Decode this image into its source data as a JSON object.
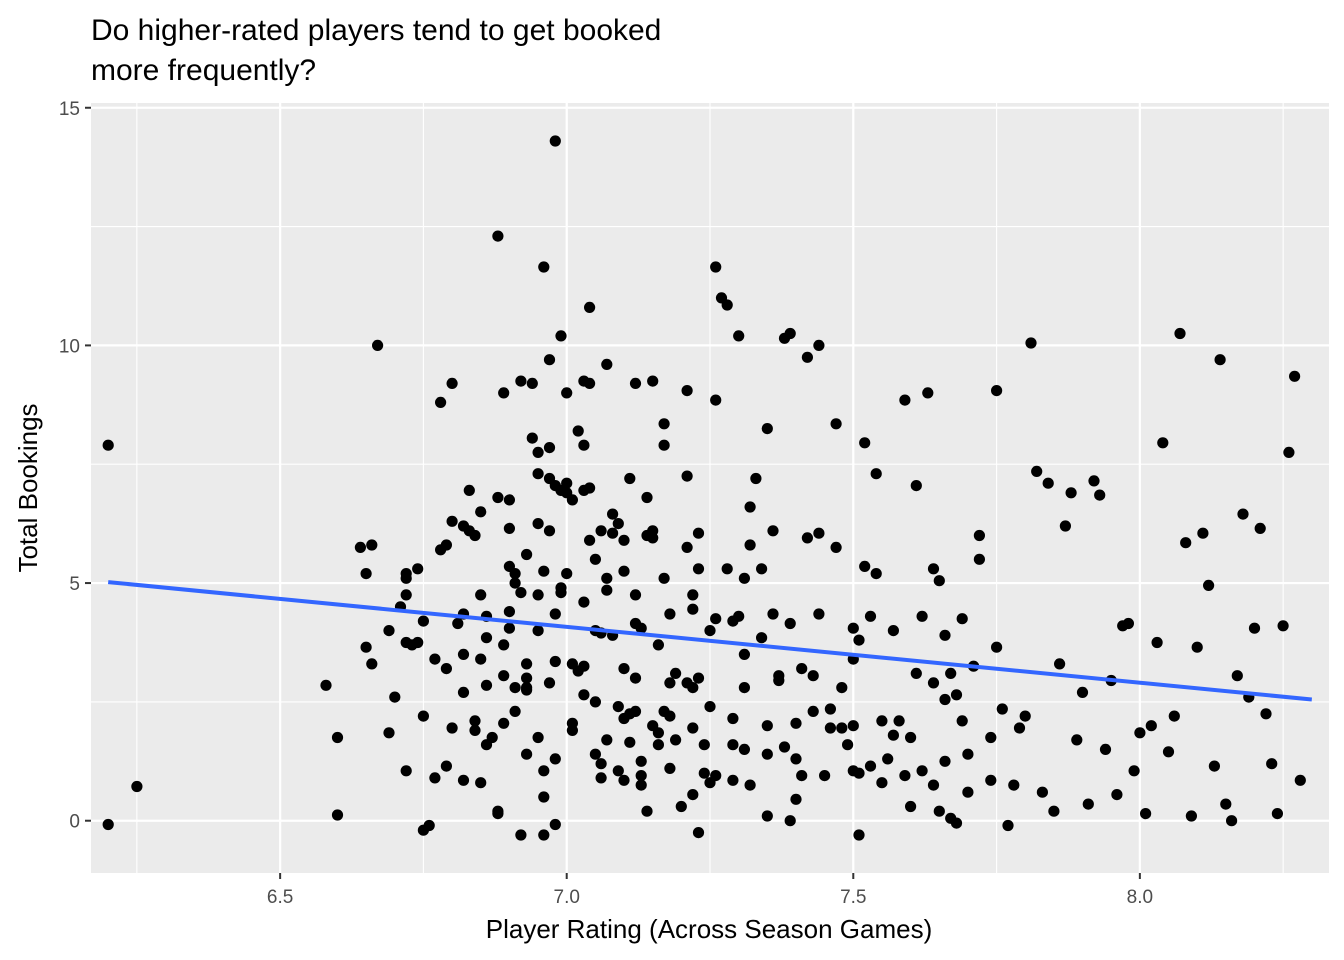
{
  "chart_data": {
    "type": "scatter",
    "title_lines": [
      "Do higher-rated players tend to get booked",
      "more frequently?"
    ],
    "xlabel": "Player Rating (Across Season Games)",
    "ylabel": "Total Bookings",
    "xlim": [
      6.17,
      8.33
    ],
    "ylim": [
      -1.1,
      15.1
    ],
    "x_ticks": [
      6.5,
      7.0,
      7.5,
      8.0
    ],
    "x_tick_labels": [
      "6.5",
      "7.0",
      "7.5",
      "8.0"
    ],
    "y_ticks": [
      0,
      5,
      10,
      15
    ],
    "y_tick_labels": [
      "0",
      "5",
      "10",
      "15"
    ],
    "grid": true,
    "background": "#ebebeb",
    "point_color": "#000000",
    "trend_line": {
      "x": [
        6.2,
        8.3
      ],
      "y": [
        5.02,
        2.55
      ],
      "color": "#3366ff"
    },
    "points": [
      [
        6.2,
        7.9
      ],
      [
        6.2,
        -0.08
      ],
      [
        6.25,
        0.72
      ],
      [
        6.58,
        2.85
      ],
      [
        6.6,
        1.75
      ],
      [
        6.6,
        0.12
      ],
      [
        6.64,
        5.75
      ],
      [
        6.65,
        5.2
      ],
      [
        6.66,
        5.8
      ],
      [
        6.67,
        10.0
      ],
      [
        6.69,
        1.85
      ],
      [
        6.7,
        2.6
      ],
      [
        6.72,
        5.1
      ],
      [
        6.72,
        5.2
      ],
      [
        6.72,
        4.75
      ],
      [
        6.72,
        3.75
      ],
      [
        6.72,
        1.05
      ],
      [
        6.73,
        3.7
      ],
      [
        6.74,
        5.3
      ],
      [
        6.74,
        3.75
      ],
      [
        6.75,
        2.2
      ],
      [
        6.75,
        -0.2
      ],
      [
        6.76,
        -0.1
      ],
      [
        6.77,
        0.9
      ],
      [
        6.78,
        8.8
      ],
      [
        6.78,
        5.7
      ],
      [
        6.79,
        5.8
      ],
      [
        6.79,
        1.15
      ],
      [
        6.8,
        1.95
      ],
      [
        6.81,
        4.15
      ],
      [
        6.82,
        4.35
      ],
      [
        6.82,
        2.7
      ],
      [
        6.82,
        0.85
      ],
      [
        6.8,
        9.2
      ],
      [
        6.82,
        6.2
      ],
      [
        6.83,
        6.1
      ],
      [
        6.83,
        6.95
      ],
      [
        6.84,
        2.1
      ],
      [
        6.84,
        1.9
      ],
      [
        6.85,
        0.8
      ],
      [
        6.85,
        3.4
      ],
      [
        6.85,
        4.75
      ],
      [
        6.86,
        4.3
      ],
      [
        6.86,
        2.85
      ],
      [
        6.86,
        1.6
      ],
      [
        6.87,
        1.75
      ],
      [
        6.88,
        0.2
      ],
      [
        6.88,
        0.15
      ],
      [
        6.89,
        2.05
      ],
      [
        6.89,
        3.05
      ],
      [
        6.89,
        3.7
      ],
      [
        6.9,
        5.35
      ],
      [
        6.9,
        4.4
      ],
      [
        6.91,
        5.2
      ],
      [
        6.91,
        5.0
      ],
      [
        6.91,
        2.8
      ],
      [
        6.91,
        2.3
      ],
      [
        6.92,
        4.8
      ],
      [
        6.92,
        -0.3
      ],
      [
        6.93,
        1.4
      ],
      [
        6.93,
        2.8
      ],
      [
        6.93,
        3.3
      ],
      [
        6.93,
        3.0
      ],
      [
        6.93,
        2.75
      ],
      [
        6.94,
        8.05
      ],
      [
        6.95,
        7.75
      ],
      [
        6.95,
        6.25
      ],
      [
        6.95,
        4.75
      ],
      [
        6.95,
        1.75
      ],
      [
        6.96,
        1.05
      ],
      [
        6.96,
        0.5
      ],
      [
        6.96,
        -0.3
      ],
      [
        6.96,
        11.65
      ],
      [
        6.97,
        7.2
      ],
      [
        6.97,
        6.1
      ],
      [
        6.97,
        2.9
      ],
      [
        6.98,
        1.3
      ],
      [
        6.98,
        -0.08
      ],
      [
        6.98,
        3.35
      ],
      [
        6.99,
        4.8
      ],
      [
        6.99,
        6.95
      ],
      [
        7.0,
        7.1
      ],
      [
        7.0,
        6.9
      ],
      [
        7.0,
        5.2
      ],
      [
        7.01,
        3.3
      ],
      [
        7.01,
        2.05
      ],
      [
        7.01,
        1.9
      ],
      [
        7.02,
        3.15
      ],
      [
        7.03,
        3.25
      ],
      [
        7.03,
        2.65
      ],
      [
        7.03,
        6.95
      ],
      [
        7.04,
        9.2
      ],
      [
        7.04,
        7.0
      ],
      [
        7.04,
        5.9
      ],
      [
        7.05,
        4.0
      ],
      [
        7.05,
        2.5
      ],
      [
        7.05,
        1.4
      ],
      [
        7.06,
        1.2
      ],
      [
        7.06,
        0.9
      ],
      [
        7.06,
        3.95
      ],
      [
        7.06,
        6.1
      ],
      [
        7.07,
        1.7
      ],
      [
        7.07,
        5.1
      ],
      [
        7.08,
        3.9
      ],
      [
        7.08,
        6.05
      ],
      [
        7.09,
        2.4
      ],
      [
        7.09,
        1.05
      ],
      [
        7.1,
        0.85
      ],
      [
        7.1,
        2.15
      ],
      [
        7.1,
        3.2
      ],
      [
        7.1,
        5.25
      ],
      [
        7.11,
        1.65
      ],
      [
        7.11,
        2.25
      ],
      [
        7.11,
        7.2
      ],
      [
        7.12,
        9.2
      ],
      [
        7.12,
        4.15
      ],
      [
        7.12,
        3.0
      ],
      [
        7.12,
        2.3
      ],
      [
        7.13,
        0.95
      ],
      [
        7.13,
        0.75
      ],
      [
        7.13,
        1.25
      ],
      [
        7.13,
        4.05
      ],
      [
        7.14,
        6.8
      ],
      [
        7.14,
        6.0
      ],
      [
        7.14,
        0.2
      ],
      [
        7.15,
        2.0
      ],
      [
        7.15,
        9.25
      ],
      [
        7.15,
        6.1
      ],
      [
        7.16,
        3.7
      ],
      [
        7.16,
        1.6
      ],
      [
        7.16,
        1.85
      ],
      [
        7.17,
        2.3
      ],
      [
        7.17,
        5.1
      ],
      [
        7.17,
        7.9
      ],
      [
        7.17,
        8.35
      ],
      [
        7.18,
        2.9
      ],
      [
        7.18,
        2.2
      ],
      [
        7.18,
        1.1
      ],
      [
        7.19,
        3.1
      ],
      [
        7.19,
        1.7
      ],
      [
        7.2,
        0.3
      ],
      [
        7.21,
        9.05
      ],
      [
        7.21,
        7.25
      ],
      [
        7.21,
        5.75
      ],
      [
        7.21,
        2.9
      ],
      [
        7.22,
        0.55
      ],
      [
        7.22,
        1.95
      ],
      [
        7.22,
        2.8
      ],
      [
        7.22,
        4.75
      ],
      [
        7.23,
        -0.25
      ],
      [
        7.23,
        5.3
      ],
      [
        7.23,
        3.0
      ],
      [
        7.23,
        6.05
      ],
      [
        7.24,
        1.6
      ],
      [
        7.24,
        1.0
      ],
      [
        7.25,
        4.0
      ],
      [
        7.25,
        0.8
      ],
      [
        7.25,
        2.4
      ],
      [
        7.26,
        0.95
      ],
      [
        7.26,
        11.65
      ],
      [
        7.26,
        8.85
      ],
      [
        7.27,
        11.0
      ],
      [
        7.28,
        10.85
      ],
      [
        7.28,
        5.3
      ],
      [
        7.29,
        4.2
      ],
      [
        7.29,
        2.15
      ],
      [
        7.29,
        1.6
      ],
      [
        7.29,
        0.85
      ],
      [
        7.3,
        10.2
      ],
      [
        7.3,
        4.3
      ],
      [
        7.31,
        5.1
      ],
      [
        7.31,
        3.5
      ],
      [
        7.31,
        2.8
      ],
      [
        7.31,
        1.5
      ],
      [
        7.32,
        6.6
      ],
      [
        7.32,
        0.75
      ],
      [
        7.32,
        5.8
      ],
      [
        7.33,
        7.2
      ],
      [
        7.34,
        5.3
      ],
      [
        7.34,
        3.85
      ],
      [
        7.35,
        8.25
      ],
      [
        7.35,
        1.4
      ],
      [
        7.35,
        2.0
      ],
      [
        7.35,
        0.1
      ],
      [
        7.36,
        6.1
      ],
      [
        7.36,
        4.35
      ],
      [
        7.37,
        3.05
      ],
      [
        7.37,
        2.95
      ],
      [
        7.38,
        1.55
      ],
      [
        7.38,
        10.15
      ],
      [
        7.39,
        10.25
      ],
      [
        7.39,
        4.15
      ],
      [
        7.39,
        0.0
      ],
      [
        7.4,
        2.05
      ],
      [
        7.4,
        1.3
      ],
      [
        7.4,
        0.45
      ],
      [
        7.41,
        3.2
      ],
      [
        7.41,
        0.95
      ],
      [
        7.42,
        9.75
      ],
      [
        7.42,
        5.95
      ],
      [
        7.43,
        3.05
      ],
      [
        7.43,
        2.3
      ],
      [
        7.44,
        6.05
      ],
      [
        7.44,
        4.35
      ],
      [
        7.44,
        10.0
      ],
      [
        7.45,
        0.95
      ],
      [
        7.46,
        1.95
      ],
      [
        7.46,
        2.35
      ],
      [
        7.47,
        8.35
      ],
      [
        7.47,
        5.75
      ],
      [
        7.48,
        2.8
      ],
      [
        7.48,
        1.95
      ],
      [
        7.49,
        1.6
      ],
      [
        7.5,
        4.05
      ],
      [
        7.5,
        3.4
      ],
      [
        7.5,
        2.0
      ],
      [
        7.5,
        1.05
      ],
      [
        7.51,
        1.0
      ],
      [
        7.51,
        3.8
      ],
      [
        7.51,
        -0.3
      ],
      [
        7.52,
        7.95
      ],
      [
        7.52,
        5.35
      ],
      [
        7.53,
        4.3
      ],
      [
        7.53,
        1.15
      ],
      [
        7.54,
        5.2
      ],
      [
        7.54,
        7.3
      ],
      [
        7.55,
        2.1
      ],
      [
        7.55,
        0.8
      ],
      [
        7.56,
        1.3
      ],
      [
        7.57,
        1.8
      ],
      [
        7.57,
        4.0
      ],
      [
        7.58,
        2.1
      ],
      [
        7.59,
        8.85
      ],
      [
        7.59,
        0.95
      ],
      [
        7.6,
        0.3
      ],
      [
        7.6,
        1.75
      ],
      [
        7.61,
        3.1
      ],
      [
        7.61,
        7.05
      ],
      [
        7.62,
        4.3
      ],
      [
        7.62,
        1.05
      ],
      [
        7.63,
        9.0
      ],
      [
        7.64,
        5.3
      ],
      [
        7.64,
        2.9
      ],
      [
        7.64,
        0.75
      ],
      [
        7.65,
        5.05
      ],
      [
        7.65,
        0.2
      ],
      [
        7.66,
        3.9
      ],
      [
        7.66,
        2.55
      ],
      [
        7.66,
        1.25
      ],
      [
        7.67,
        0.05
      ],
      [
        7.67,
        3.1
      ],
      [
        7.68,
        -0.05
      ],
      [
        7.68,
        2.65
      ],
      [
        7.69,
        4.25
      ],
      [
        7.69,
        2.1
      ],
      [
        7.7,
        0.6
      ],
      [
        7.7,
        1.4
      ],
      [
        7.71,
        3.25
      ],
      [
        7.72,
        5.5
      ],
      [
        7.72,
        6.0
      ],
      [
        7.74,
        0.85
      ],
      [
        7.74,
        1.75
      ],
      [
        7.75,
        3.65
      ],
      [
        7.75,
        9.05
      ],
      [
        7.76,
        2.35
      ],
      [
        7.77,
        -0.1
      ],
      [
        7.78,
        0.75
      ],
      [
        7.79,
        1.95
      ],
      [
        7.8,
        2.2
      ],
      [
        7.81,
        10.05
      ],
      [
        7.82,
        7.35
      ],
      [
        7.83,
        0.6
      ],
      [
        7.84,
        7.1
      ],
      [
        7.85,
        0.2
      ],
      [
        7.86,
        3.3
      ],
      [
        7.87,
        6.2
      ],
      [
        7.88,
        6.9
      ],
      [
        7.89,
        1.7
      ],
      [
        7.9,
        2.7
      ],
      [
        7.91,
        0.35
      ],
      [
        7.92,
        7.15
      ],
      [
        7.93,
        6.85
      ],
      [
        7.94,
        1.5
      ],
      [
        7.95,
        2.95
      ],
      [
        7.96,
        0.55
      ],
      [
        7.97,
        4.1
      ],
      [
        7.98,
        4.15
      ],
      [
        7.99,
        1.05
      ],
      [
        8.0,
        1.85
      ],
      [
        8.01,
        0.15
      ],
      [
        8.02,
        2.0
      ],
      [
        8.03,
        3.75
      ],
      [
        8.04,
        7.95
      ],
      [
        8.05,
        1.45
      ],
      [
        8.06,
        2.2
      ],
      [
        8.07,
        10.25
      ],
      [
        8.08,
        5.85
      ],
      [
        8.09,
        0.1
      ],
      [
        8.1,
        3.65
      ],
      [
        8.11,
        6.05
      ],
      [
        8.12,
        4.95
      ],
      [
        8.13,
        1.15
      ],
      [
        8.14,
        9.7
      ],
      [
        8.15,
        0.35
      ],
      [
        8.16,
        0.0
      ],
      [
        8.17,
        3.05
      ],
      [
        8.18,
        6.45
      ],
      [
        8.19,
        2.6
      ],
      [
        8.2,
        4.05
      ],
      [
        8.21,
        6.15
      ],
      [
        8.22,
        2.25
      ],
      [
        8.23,
        1.2
      ],
      [
        8.24,
        0.15
      ],
      [
        8.25,
        4.1
      ],
      [
        8.26,
        7.75
      ],
      [
        8.27,
        9.35
      ],
      [
        8.28,
        0.85
      ],
      [
        6.98,
        14.3
      ],
      [
        6.88,
        12.3
      ],
      [
        6.97,
        9.7
      ],
      [
        7.0,
        9.0
      ],
      [
        6.99,
        10.2
      ],
      [
        7.04,
        10.8
      ],
      [
        7.07,
        9.6
      ],
      [
        6.94,
        9.2
      ],
      [
        6.92,
        9.25
      ],
      [
        7.03,
        9.25
      ],
      [
        6.89,
        9.0
      ],
      [
        7.02,
        8.2
      ],
      [
        6.95,
        7.3
      ],
      [
        7.03,
        7.9
      ],
      [
        6.97,
        7.85
      ],
      [
        6.98,
        7.05
      ],
      [
        6.9,
        6.75
      ],
      [
        6.88,
        6.8
      ],
      [
        6.85,
        6.5
      ],
      [
        6.8,
        6.3
      ],
      [
        6.84,
        6.0
      ],
      [
        6.9,
        6.15
      ],
      [
        7.01,
        6.75
      ],
      [
        7.08,
        6.45
      ],
      [
        7.09,
        6.25
      ],
      [
        7.1,
        5.9
      ],
      [
        7.15,
        5.95
      ],
      [
        7.05,
        5.5
      ],
      [
        6.93,
        5.6
      ],
      [
        6.96,
        5.25
      ],
      [
        6.99,
        4.9
      ],
      [
        7.03,
        4.6
      ],
      [
        7.07,
        4.85
      ],
      [
        6.98,
        4.35
      ],
      [
        6.95,
        4.0
      ],
      [
        7.12,
        4.75
      ],
      [
        7.18,
        4.35
      ],
      [
        7.22,
        4.45
      ],
      [
        7.26,
        4.25
      ],
      [
        6.9,
        4.05
      ],
      [
        6.86,
        3.85
      ],
      [
        6.82,
        3.5
      ],
      [
        6.79,
        3.2
      ],
      [
        6.77,
        3.4
      ],
      [
        6.75,
        4.2
      ],
      [
        6.71,
        4.5
      ],
      [
        6.66,
        3.3
      ],
      [
        6.65,
        3.65
      ],
      [
        6.69,
        4.0
      ]
    ]
  }
}
